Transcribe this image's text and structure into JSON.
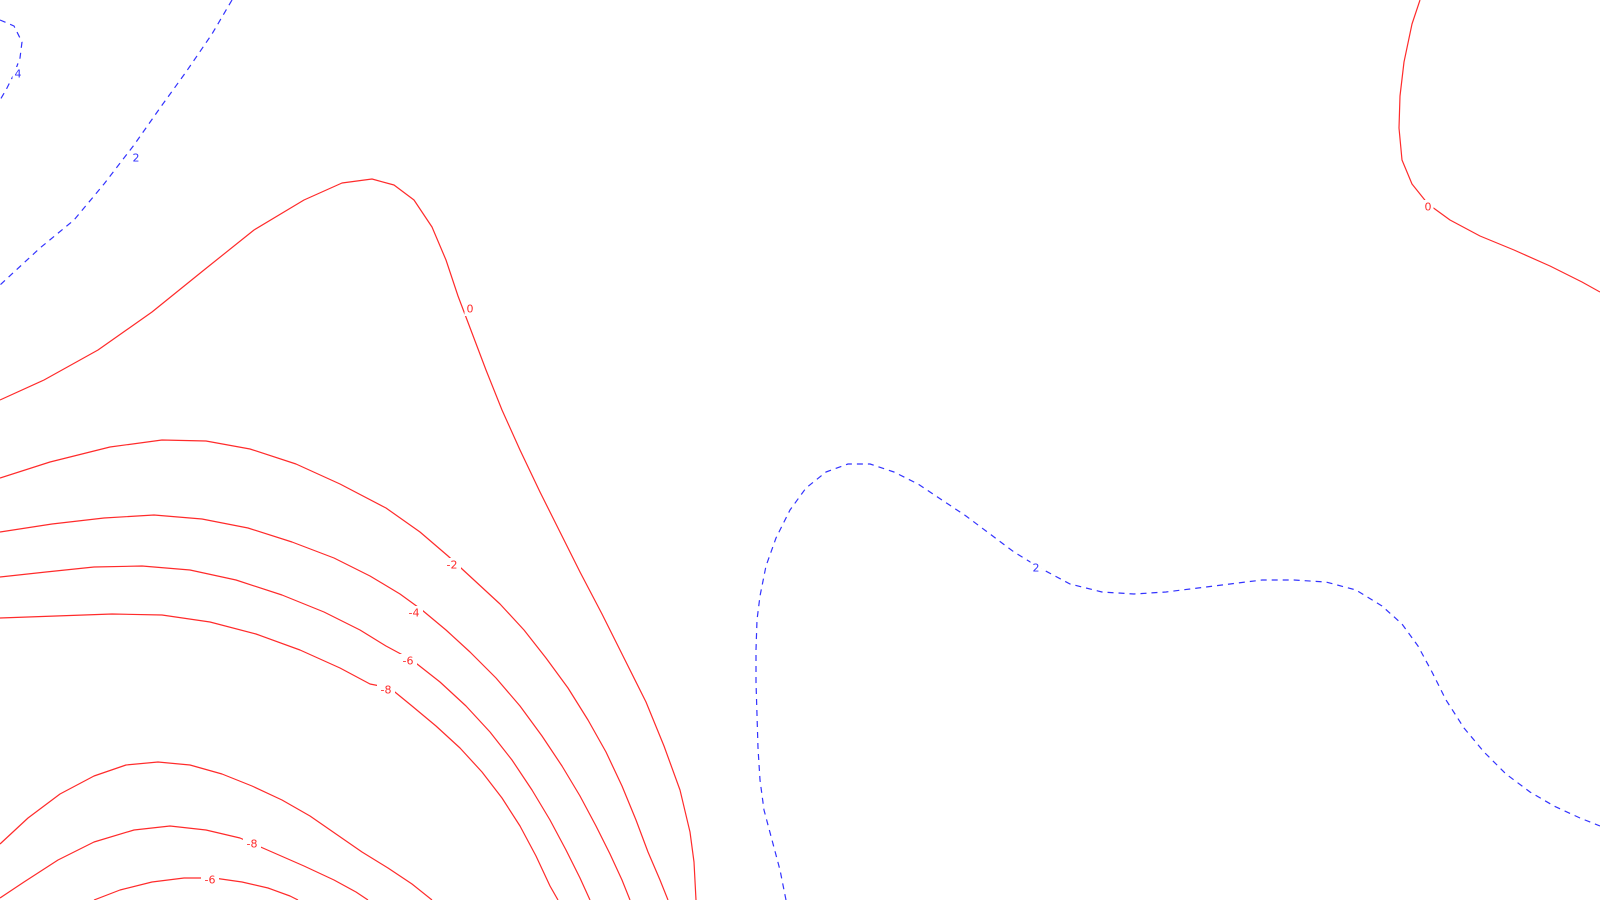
{
  "chart_data": {
    "type": "contour",
    "title": "",
    "xlabel": "",
    "ylabel": "",
    "grid": false,
    "legend": "none",
    "colors": {
      "positive": "#3333ff",
      "non_positive": "#ff2b2b",
      "background": "#ffffff"
    },
    "styles": {
      "positive": "dashed",
      "non_positive": "solid"
    },
    "contours": [
      {
        "level": 4,
        "label": "4",
        "label_points": [
          1
        ]
      },
      {
        "level": 2,
        "label": "2",
        "label_points": [
          1
        ]
      },
      {
        "level": 0,
        "label": "0",
        "label_points": [
          1
        ]
      },
      {
        "level": 0,
        "label": "0",
        "label_points": [
          1
        ]
      },
      {
        "level": -2,
        "label": "-2",
        "label_points": [
          1
        ]
      },
      {
        "level": -4,
        "label": "-4",
        "label_points": [
          1
        ]
      },
      {
        "level": -6,
        "label": "-6",
        "label_points": [
          1
        ]
      },
      {
        "level": -8,
        "label": "-8",
        "label_points": [
          1
        ]
      },
      {
        "level": 2,
        "label": "2",
        "label_points": [
          1
        ]
      },
      {
        "level": -8,
        "label": "-8",
        "label_points": [
          1
        ]
      },
      {
        "level": -6,
        "label": "-6",
        "label_points": [
          1
        ]
      },
      {
        "level": -6,
        "label": "",
        "label_points": []
      }
    ]
  }
}
